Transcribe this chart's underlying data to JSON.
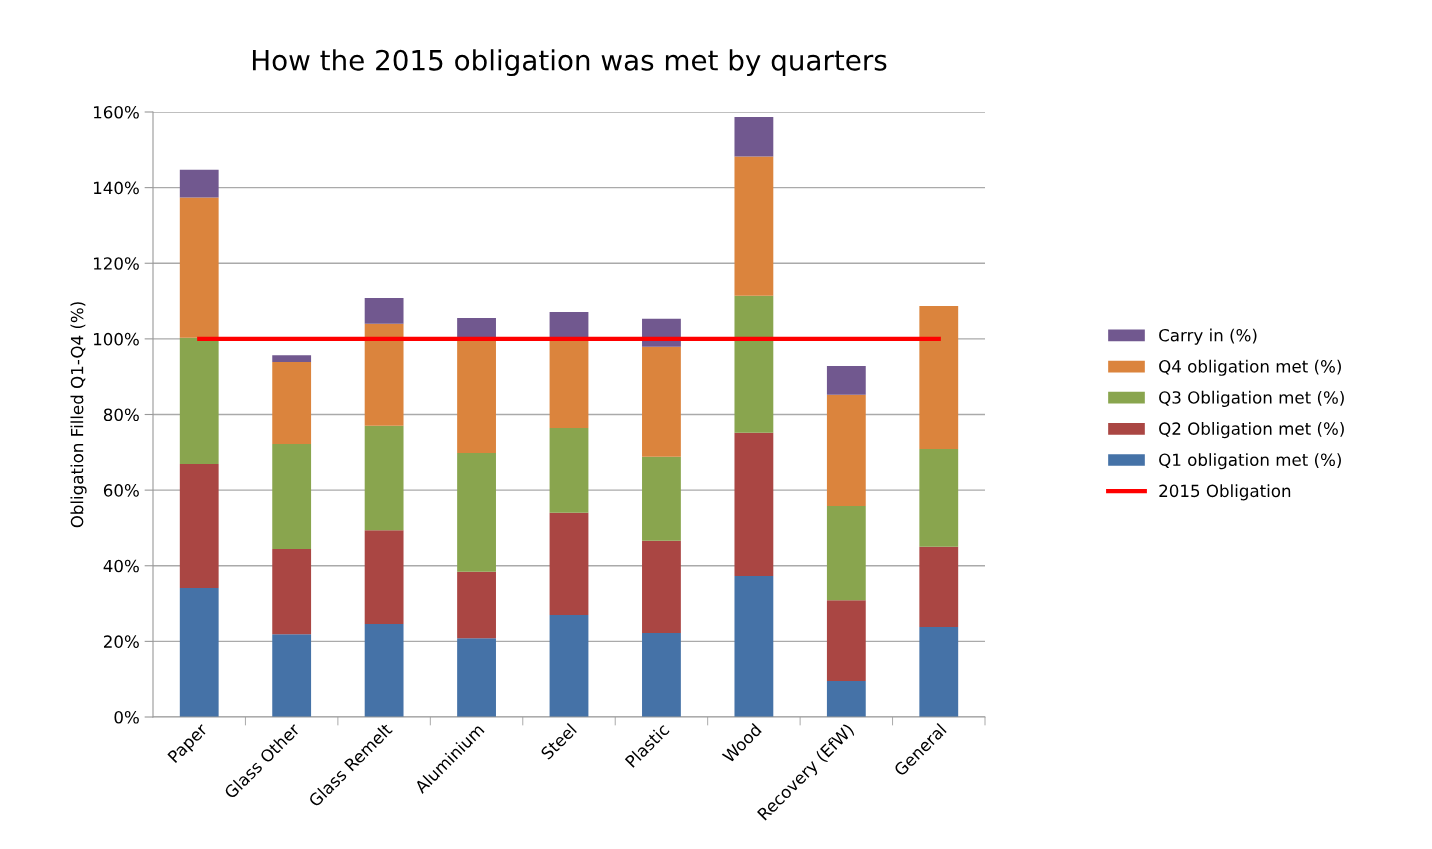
{
  "chart_data": {
    "type": "bar",
    "stacked": true,
    "title": "How the 2015 obligation was met by quarters",
    "ylabel": "Obligation Filled Q1-Q4 (%)",
    "categories": [
      "Paper",
      "Glass Other",
      "Glass Remelt",
      "Aluminium",
      "Steel",
      "Plastic",
      "Wood",
      "Recovery (EfW)",
      "General"
    ],
    "series": [
      {
        "name": "Q1 obligation met (%)",
        "color": "#4572a7",
        "values": [
          34.1,
          21.9,
          24.6,
          20.8,
          27.0,
          22.2,
          37.3,
          9.5,
          23.8
        ]
      },
      {
        "name": "Q2 Obligation met (%)",
        "color": "#aa4643",
        "values": [
          32.8,
          22.5,
          24.8,
          17.6,
          27.0,
          24.4,
          37.9,
          21.4,
          21.2
        ]
      },
      {
        "name": "Q3 Obligation met (%)",
        "color": "#89a54e",
        "values": [
          33.4,
          27.8,
          27.6,
          31.4,
          22.4,
          22.2,
          36.2,
          24.9,
          25.9
        ]
      },
      {
        "name": "Q4 obligation met (%)",
        "color": "#db843d",
        "values": [
          37.1,
          21.7,
          27.0,
          29.9,
          23.5,
          29.1,
          36.8,
          29.4,
          37.8
        ]
      },
      {
        "name": "Carry in (%)",
        "color": "#71588f",
        "values": [
          7.3,
          1.8,
          6.8,
          5.8,
          7.2,
          7.4,
          10.5,
          7.6,
          0
        ]
      },
      {
        "name": "2015 Obligation",
        "type": "line",
        "color": "#ff0000",
        "values": [
          100,
          100,
          100,
          100,
          100,
          100,
          100,
          100,
          100
        ]
      }
    ],
    "ylim": [
      0,
      160
    ],
    "yticks": [
      {
        "value": 0,
        "label": "0%"
      },
      {
        "value": 20,
        "label": "20%"
      },
      {
        "value": 40,
        "label": "40%"
      },
      {
        "value": 60,
        "label": "60%"
      },
      {
        "value": 80,
        "label": "80%"
      },
      {
        "value": 100,
        "label": "100%"
      },
      {
        "value": 120,
        "label": "120%"
      },
      {
        "value": 140,
        "label": "140%"
      },
      {
        "value": 160,
        "label": "160%"
      }
    ],
    "grid": "y",
    "legend": "right"
  }
}
